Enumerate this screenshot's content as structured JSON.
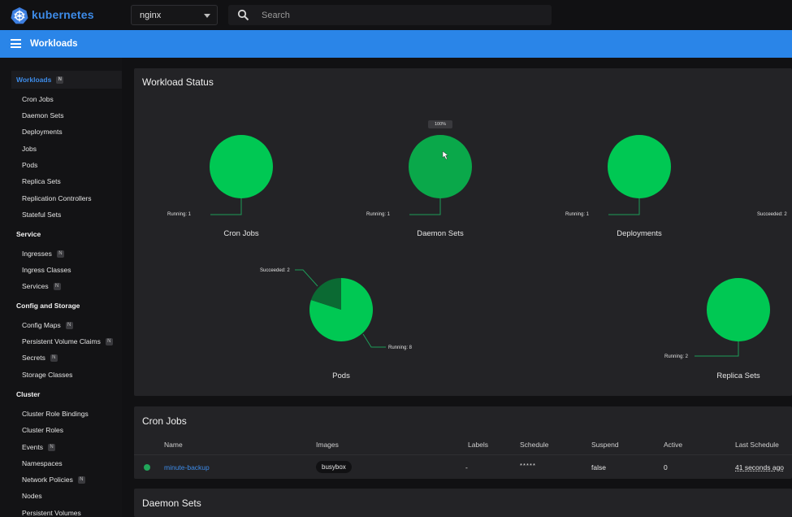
{
  "brand": {
    "name": "kubernetes"
  },
  "namespace": {
    "selected": "nginx"
  },
  "search": {
    "placeholder": "Search"
  },
  "appbar": {
    "title": "Workloads"
  },
  "sidebar": {
    "workloads": {
      "label": "Workloads",
      "badge": "N"
    },
    "workload_items": [
      "Cron Jobs",
      "Daemon Sets",
      "Deployments",
      "Jobs",
      "Pods",
      "Replica Sets",
      "Replication Controllers",
      "Stateful Sets"
    ],
    "service_header": "Service",
    "service_items": [
      {
        "label": "Ingresses",
        "badge": "N"
      },
      {
        "label": "Ingress Classes",
        "badge": ""
      },
      {
        "label": "Services",
        "badge": "N"
      }
    ],
    "config_header": "Config and Storage",
    "config_items": [
      {
        "label": "Config Maps",
        "badge": "N"
      },
      {
        "label": "Persistent Volume Claims",
        "badge": "N"
      },
      {
        "label": "Secrets",
        "badge": "N"
      },
      {
        "label": "Storage Classes",
        "badge": ""
      }
    ],
    "cluster_header": "Cluster",
    "cluster_items": [
      {
        "label": "Cluster Role Bindings",
        "badge": ""
      },
      {
        "label": "Cluster Roles",
        "badge": ""
      },
      {
        "label": "Events",
        "badge": "N"
      },
      {
        "label": "Namespaces",
        "badge": ""
      },
      {
        "label": "Network Policies",
        "badge": "N"
      },
      {
        "label": "Nodes",
        "badge": ""
      },
      {
        "label": "Persistent Volumes",
        "badge": ""
      }
    ]
  },
  "workload_status": {
    "title": "Workload Status",
    "charts": [
      {
        "name": "Cron Jobs",
        "running_label": "Running: 1",
        "running": 1,
        "succeeded": 0
      },
      {
        "name": "Daemon Sets",
        "running_label": "Running: 1",
        "running": 1,
        "succeeded": 0,
        "tooltip": "100%"
      },
      {
        "name": "Deployments",
        "running_label": "Running: 1",
        "running": 1,
        "succeeded": 0
      },
      {
        "name": "Pods",
        "running_label": "Running: 8",
        "succeeded_label": "Succeeded: 2",
        "running": 8,
        "succeeded": 2
      },
      {
        "name": "Replica Sets",
        "running_label": "Running: 2",
        "running": 2,
        "succeeded": 0
      }
    ],
    "offscreen_label": "Succeeded: 2",
    "colors": {
      "running": "#00c853",
      "succeeded": "#0b6a33",
      "hovered": "#0aa84a"
    }
  },
  "cron_jobs": {
    "title": "Cron Jobs",
    "columns": [
      "Name",
      "Images",
      "Labels",
      "Schedule",
      "Suspend",
      "Active",
      "Last Schedule"
    ],
    "rows": [
      {
        "name": "minute-backup",
        "image": "busybox",
        "labels": "-",
        "schedule": "* * * * *",
        "suspend": "false",
        "active": "0",
        "last_schedule": "41 seconds ago"
      }
    ]
  },
  "daemon_sets": {
    "title": "Daemon Sets"
  }
}
